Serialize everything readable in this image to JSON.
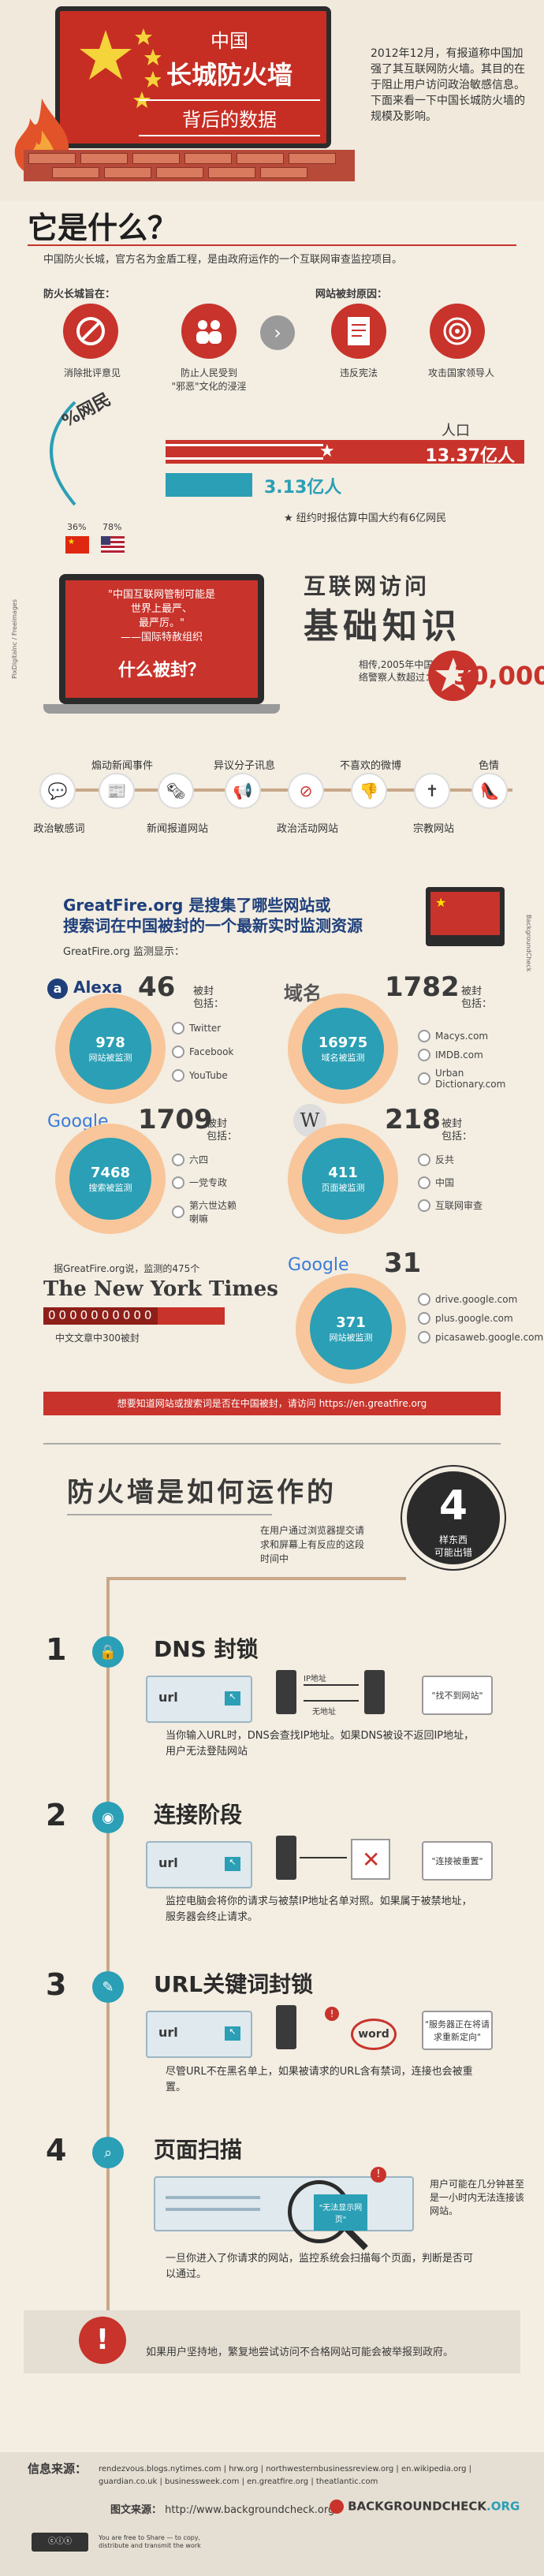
{
  "header": {
    "title_line1": "中国",
    "title_line2": "长城防火墙",
    "title_line3": "背后的数据",
    "description": "2012年12月，有报道称中国加强了其互联网防火墙。其目的在于阻止用户访问政治敏感信息。下面来看一下中国长城防火墙的规模及影响。"
  },
  "what": {
    "title": "它是什么？",
    "intro": "中国防火长城，官方名为金盾工程，是由政府运作的一个互联网审查监控项目。",
    "purpose_label": "防火长城旨在：",
    "reasons_label": "网站被封原因：",
    "items": [
      {
        "label": "消除批评意见",
        "icon": "no-comment-icon"
      },
      {
        "label": "防止人民受到\n\"邪恶\"文化的浸淫",
        "icon": "people-icon"
      },
      {
        "label": "违反宪法",
        "icon": "document-icon"
      },
      {
        "label": "攻击国家领导人",
        "icon": "target-icon"
      }
    ]
  },
  "population": {
    "netizen_label": "%网民",
    "people_label": "人口",
    "china_population": "13.37亿人",
    "netizens": "3.13亿人",
    "pct_china": "36%",
    "pct_usa": "78%",
    "note": "纽约时报估算中国大约有6亿网民",
    "china_share_pct": 36,
    "usa_share_pct": 78
  },
  "monitor": {
    "quote": "\"中国互联网管制可能是世界上最严、最严厉。\"——国际特赦组织",
    "quote_l1": "\"中国互联网管制可能是",
    "quote_l2": "世界上最严、",
    "quote_l3": "最严厉。\"",
    "quote_l4": "——国际特赦组织",
    "what_blocked": "什么被封？",
    "photo_credit": "PixDigitalnc / Freeimages"
  },
  "basics": {
    "title_line1": "互联网访问",
    "title_line2": "基础知识",
    "police_text": "相传,2005年中国网络警察人数超过：",
    "police_count": "30,000"
  },
  "blocked_topics": [
    {
      "label": "政治敏感词",
      "icon": "chat-icon",
      "row": "bottom"
    },
    {
      "label": "煽动新闻事件",
      "icon": "news-icon",
      "row": "top"
    },
    {
      "label": "新闻报道网站",
      "icon": "newspaper-icon",
      "row": "bottom"
    },
    {
      "label": "异议分子讯息",
      "icon": "megaphone-icon",
      "row": "top"
    },
    {
      "label": "政治活动网站",
      "icon": "ban-icon",
      "row": "bottom"
    },
    {
      "label": "不喜欢的微博",
      "icon": "thumbs-down-icon",
      "row": "top"
    },
    {
      "label": "宗教网站",
      "icon": "cross-icon",
      "row": "bottom"
    },
    {
      "label": "色情",
      "icon": "heel-icon",
      "row": "top"
    }
  ],
  "greatfire": {
    "headline_l1": "GreatFire.org 是搜集了哪些网站或",
    "headline_l2": "搜索词在中国被封的一个最新实时监测资源",
    "sub": "GreatFire.org 监测显示：",
    "side_label": "BackgroundCheck",
    "alexa": {
      "brand": "Alexa",
      "count": "46",
      "blocked": "被封",
      "includes": "包括：",
      "ring_num": "978",
      "ring_label": "网站被监测",
      "items": [
        "Twitter",
        "Facebook",
        "YouTube"
      ]
    },
    "domains": {
      "brand": "域名",
      "count": "1782",
      "blocked": "被封",
      "includes": "包括：",
      "ring_num": "16975",
      "ring_label": "域名被监测",
      "items": [
        "Macys.com",
        "IMDB.com",
        "Urban Dictionary.com"
      ]
    },
    "google_search": {
      "brand": "Google",
      "count": "1709",
      "blocked": "被封",
      "includes": "包括：",
      "ring_num": "7468",
      "ring_label": "搜索被监测",
      "items": [
        "六四",
        "一党专政",
        "第六世达赖喇嘛"
      ]
    },
    "wikipedia": {
      "brand": "W",
      "count": "218",
      "blocked": "被封",
      "includes": "包括：",
      "ring_num": "411",
      "ring_label": "页面被监测",
      "items": [
        "反共",
        "中国",
        "互联网审查"
      ]
    },
    "nyt": {
      "lead": "据GreatFire.org说，监测的475个",
      "brand": "The New York Times",
      "boxes": "0000000000",
      "sub": "中文文章中300被封",
      "blocked_ratio": 0.63
    },
    "google_sites": {
      "brand": "Google",
      "count": "31",
      "ring_num": "371",
      "ring_label": "网站被监测",
      "items": [
        "drive.google.com",
        "plus.google.com",
        "picasaweb.google.com"
      ]
    },
    "cta": "想要知道网站或搜索词是否在中国被封，请访问 https://en.greatfire.org"
  },
  "how": {
    "title": "防火墙是如何运作的",
    "sub": "在用户通过浏览器提交请求和屏幕上有反应的这段时间中",
    "badge_num": "4",
    "badge_l1": "样东西",
    "badge_l2": "可能出错",
    "steps": [
      {
        "num": "1",
        "icon": "lock-icon",
        "title": "DNS 封锁",
        "url": "url",
        "box": "\"找不到网站\"",
        "ip1": "IP地址",
        "ip2": "无地址",
        "desc": "当你输入URL时，DNS会查找IP地址。如果DNS被设不返回IP地址，用户无法登陆网站"
      },
      {
        "num": "2",
        "icon": "wifi-icon",
        "title": "连接阶段",
        "url": "url",
        "box": "\"连接被重置\"",
        "desc": "监控电脑会将你的请求与被禁IP地址名单对照。如果属于被禁地址，服务器会终止请求。"
      },
      {
        "num": "3",
        "icon": "pen-icon",
        "title": "URL关键词封锁",
        "url": "url",
        "box": "\"服务器正在将请求重新定向\"",
        "word": "word",
        "desc": "尽管URL不在黑名单上，如果被请求的URL含有禁词，连接也会被重置。"
      },
      {
        "num": "4",
        "icon": "magnifier-icon",
        "title": "页面扫描",
        "scan_box": "\"无法显示网页\"",
        "side": "用户可能在几分钟甚至是一小时内无法连接该网站。",
        "desc": "一旦你进入了你请求的网站，监控系统会扫描每个页面，判断是否可以通过。"
      }
    ],
    "warning": "如果用户坚持地，繁复地尝试访问不合格网站可能会被举报到政府。"
  },
  "footer": {
    "sources_label": "信息来源：",
    "sources_l1": "rendezvous.blogs.nytimes.com | hrw.org | northwesternbusinessreview.org | en.wikipedia.org |",
    "sources_l2": "guardian.co.uk | businessweek.com | en.greatfire.org | theatlantic.com",
    "img_label": "图文来源：",
    "img_src": "http://www.backgroundcheck.org",
    "brand": "BACKGROUNDCHECK",
    "brand_tld": ".ORG",
    "license": "You are free to Share — to copy, distribute and transmit the work"
  },
  "colors": {
    "red": "#c8332b",
    "teal": "#2a9fb5",
    "peach": "#f8c69a",
    "background": "#f3ede2"
  }
}
